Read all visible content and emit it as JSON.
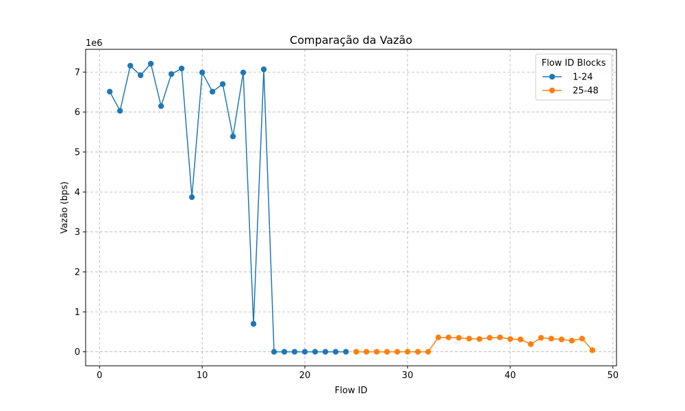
{
  "chart_data": {
    "type": "line",
    "title": "Comparação da Vazão",
    "xlabel": "Flow ID",
    "ylabel": "Vazão (bps)",
    "y_offset_label": "1e6",
    "xlim": [
      -1.35,
      50.35
    ],
    "ylim": [
      -350000,
      7570000
    ],
    "xticks": [
      0,
      10,
      20,
      30,
      40,
      50
    ],
    "yticks": [
      0,
      1000000,
      2000000,
      3000000,
      4000000,
      5000000,
      6000000,
      7000000
    ],
    "ytick_labels": [
      "0",
      "1",
      "2",
      "3",
      "4",
      "5",
      "6",
      "7"
    ],
    "grid": true,
    "legend": {
      "title": "Flow ID Blocks",
      "position": "top-right"
    },
    "series": [
      {
        "name": "1-24",
        "color": "#1f77b4",
        "x": [
          1,
          2,
          3,
          4,
          5,
          6,
          7,
          8,
          9,
          10,
          11,
          12,
          13,
          14,
          15,
          16,
          17,
          18,
          19,
          20,
          21,
          22,
          23,
          24
        ],
        "values": [
          6510000,
          6030000,
          7160000,
          6920000,
          7210000,
          6150000,
          6950000,
          7090000,
          3870000,
          6990000,
          6510000,
          6700000,
          5390000,
          6990000,
          700000,
          7070000,
          0,
          0,
          0,
          0,
          0,
          0,
          0,
          0
        ]
      },
      {
        "name": "25-48",
        "color": "#ff7f0e",
        "x": [
          25,
          26,
          27,
          28,
          29,
          30,
          31,
          32,
          33,
          34,
          35,
          36,
          37,
          38,
          39,
          40,
          41,
          42,
          43,
          44,
          45,
          46,
          47,
          48
        ],
        "values": [
          0,
          0,
          0,
          0,
          0,
          0,
          0,
          0,
          360000,
          360000,
          350000,
          330000,
          320000,
          350000,
          360000,
          320000,
          310000,
          190000,
          350000,
          330000,
          310000,
          280000,
          330000,
          40000
        ]
      }
    ]
  }
}
